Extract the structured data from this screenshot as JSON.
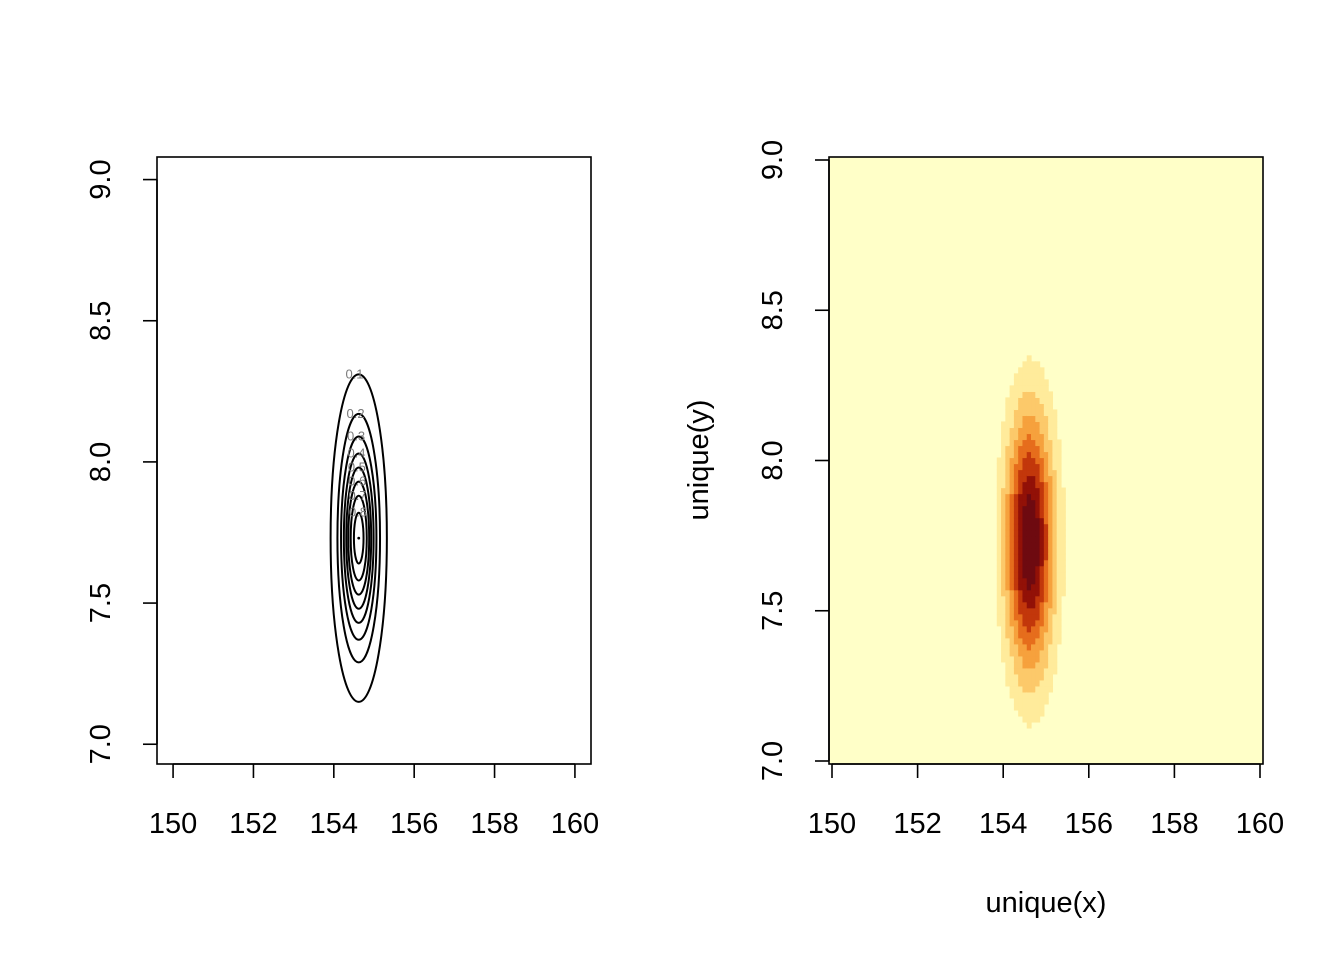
{
  "chart_data": [
    {
      "type": "contour",
      "title": "",
      "xlabel": "",
      "ylabel": "",
      "xlim": [
        149.6,
        160.4
      ],
      "ylim": [
        6.93,
        9.08
      ],
      "x_ticks": [
        150,
        152,
        154,
        156,
        158,
        160
      ],
      "x_tick_labels": [
        "150",
        "152",
        "154",
        "156",
        "158",
        "160"
      ],
      "y_ticks": [
        7.0,
        7.5,
        8.0,
        8.5,
        9.0
      ],
      "y_tick_labels": [
        "7.0",
        "7.5",
        "8.0",
        "8.5",
        "9.0"
      ],
      "peak": {
        "x": 154.62,
        "y": 7.73
      },
      "contours": [
        {
          "level": 0.1,
          "label": "0.1",
          "x_halfwidth": 0.7,
          "y_halfwidth": 0.58
        },
        {
          "level": 0.2,
          "label": "0.2",
          "x_halfwidth": 0.53,
          "y_halfwidth": 0.44
        },
        {
          "level": 0.3,
          "label": "0.3",
          "x_halfwidth": 0.44,
          "y_halfwidth": 0.36
        },
        {
          "level": 0.4,
          "label": "0.4",
          "x_halfwidth": 0.37,
          "y_halfwidth": 0.3
        },
        {
          "level": 0.5,
          "label": "0.5",
          "x_halfwidth": 0.31,
          "y_halfwidth": 0.25
        },
        {
          "level": 0.6,
          "label": "0.6",
          "x_halfwidth": 0.26,
          "y_halfwidth": 0.2
        },
        {
          "level": 0.7,
          "label": "0.7",
          "x_halfwidth": 0.2,
          "y_halfwidth": 0.15
        },
        {
          "level": 0.8,
          "label": "0.8",
          "x_halfwidth": 0.12,
          "y_halfwidth": 0.09
        }
      ],
      "grid": false,
      "legend": "none"
    },
    {
      "type": "heatmap",
      "title": "",
      "xlabel": "unique(x)",
      "ylabel": "unique(y)",
      "xlim": [
        150,
        160
      ],
      "ylim": [
        7.0,
        9.0
      ],
      "x_ticks": [
        150,
        152,
        154,
        156,
        158,
        160
      ],
      "x_tick_labels": [
        "150",
        "152",
        "154",
        "156",
        "158",
        "160"
      ],
      "y_ticks": [
        7.0,
        7.5,
        8.0,
        8.5,
        9.0
      ],
      "y_tick_labels": [
        "7.0",
        "7.5",
        "8.0",
        "8.5",
        "9.0"
      ],
      "grid_x_step": 0.1,
      "grid_y_step": 0.02,
      "peak": {
        "x": 154.62,
        "y": 7.73
      },
      "sd_x": 0.4,
      "sd_y": 0.3,
      "palette": [
        "#ffffc8",
        "#ffeb9b",
        "#fcc96a",
        "#f6a13d",
        "#e66d1c",
        "#c2370b",
        "#921107",
        "#6e0a10"
      ],
      "grid": false,
      "legend": "none"
    }
  ]
}
